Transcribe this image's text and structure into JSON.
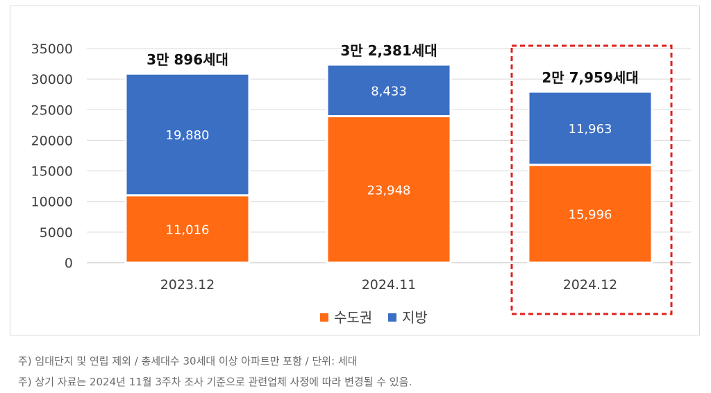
{
  "chart_data": {
    "type": "bar",
    "stacked": true,
    "categories": [
      "2023.12",
      "2024.11",
      "2024.12"
    ],
    "series": [
      {
        "name": "수도권",
        "color": "#ff6a13",
        "values": [
          11016,
          23948,
          15996
        ],
        "labels": [
          "11,016",
          "23,948",
          "15,996"
        ]
      },
      {
        "name": "지방",
        "color": "#3a6fc4",
        "values": [
          19880,
          8433,
          11963
        ],
        "labels": [
          "19,880",
          "8,433",
          "11,963"
        ]
      }
    ],
    "totals": [
      30896,
      32381,
      27959
    ],
    "total_labels": [
      "3만 896세대",
      "3만 2,381세대",
      "2만 7,959세대"
    ],
    "ylim": [
      0,
      35000
    ],
    "yticks": [
      0,
      5000,
      10000,
      15000,
      20000,
      25000,
      30000,
      35000
    ],
    "ytick_labels": [
      "0",
      "5000",
      "10000",
      "15000",
      "20000",
      "25000",
      "30000",
      "35000"
    ],
    "highlight_index": 2,
    "highlight_color": "#e02020",
    "legend_position": "bottom-right",
    "grid": true,
    "grid_color": "#d9d9d9"
  },
  "footnotes": [
    "주) 임대단지 및 연립 제외 / 총세대수 30세대 이상 아파트만 포함 / 단위: 세대",
    "주) 상기 자료는 2024년 11월 3주차 조사 기준으로 관련업체 사정에 따라 변경될 수 있음."
  ]
}
